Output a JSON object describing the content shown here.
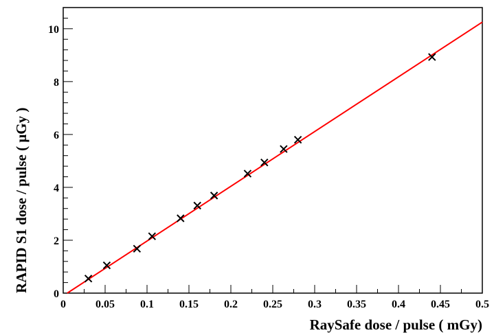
{
  "chart_data": {
    "type": "scatter",
    "xlabel": "RaySafe dose / pulse (  mGy)",
    "ylabel": "RAPID S1 dose / pulse ( μGy )",
    "xlim": [
      0,
      0.5
    ],
    "ylim": [
      0,
      10.8
    ],
    "x_ticks": [
      "0",
      "0.05",
      "0.1",
      "0.15",
      "0.2",
      "0.25",
      "0.3",
      "0.35",
      "0.4",
      "0.45",
      "0.5"
    ],
    "y_ticks": [
      "0",
      "2",
      "4",
      "6",
      "8",
      "10"
    ],
    "grid": false,
    "series": [
      {
        "type": "scatter",
        "marker": "x",
        "color": "#000000",
        "x": [
          0.03,
          0.052,
          0.088,
          0.106,
          0.14,
          0.16,
          0.18,
          0.22,
          0.24,
          0.263,
          0.28,
          0.44
        ],
        "y": [
          0.55,
          1.05,
          1.68,
          2.15,
          2.83,
          3.31,
          3.69,
          4.52,
          4.94,
          5.45,
          5.8,
          8.93
        ]
      },
      {
        "type": "line",
        "color": "#ff0000",
        "x": [
          0.0,
          0.5
        ],
        "y": [
          -0.1,
          10.25
        ]
      }
    ]
  }
}
